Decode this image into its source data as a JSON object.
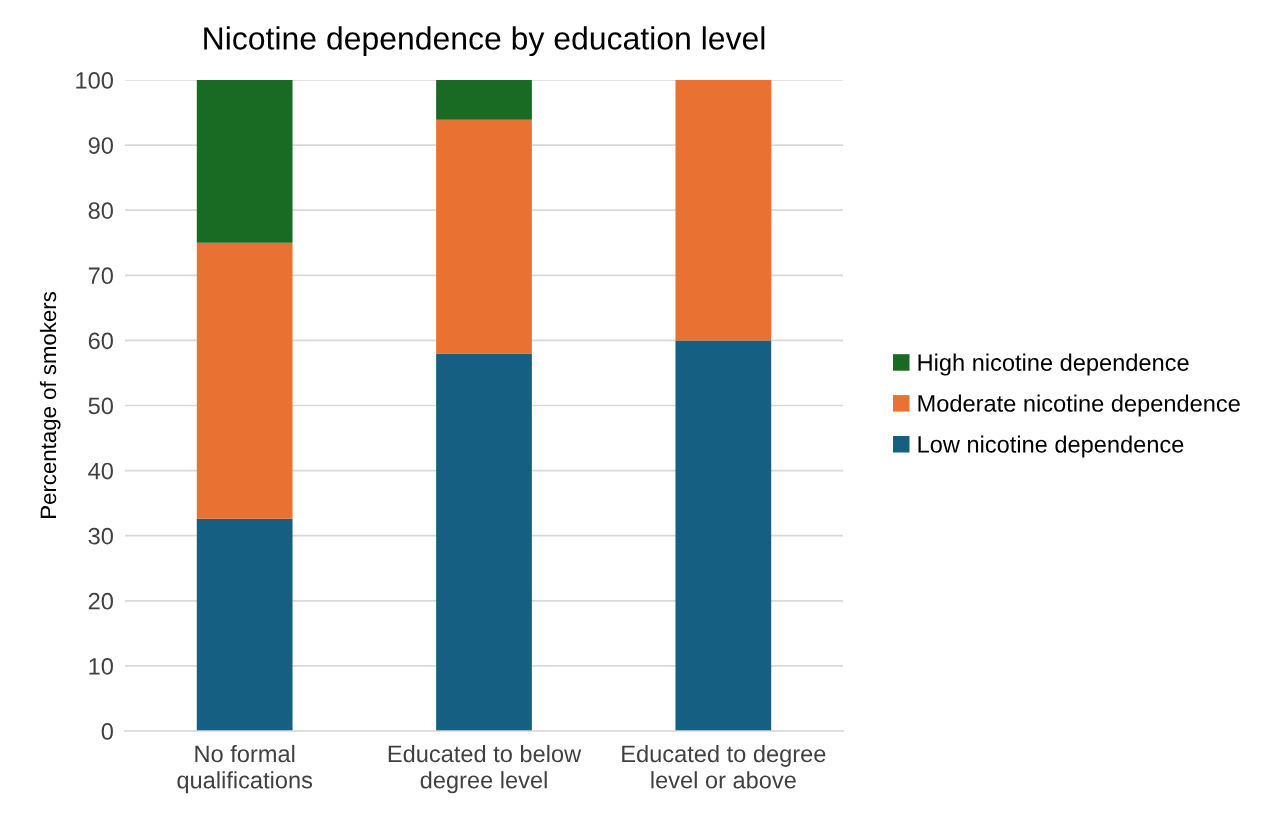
{
  "chart_data": {
    "type": "bar",
    "stacked": true,
    "title": "Nicotine dependence by education level",
    "ylabel": "Percentage of smokers",
    "categories": [
      "No formal\nqualifications",
      "Educated to below\ndegree level",
      "Educated to degree\nlevel or above"
    ],
    "series": [
      {
        "name": "Low nicotine dependence",
        "color": "#156082",
        "values": [
          32.6,
          58.0,
          60.0
        ]
      },
      {
        "name": "Moderate nicotine dependence",
        "color": "#e97132",
        "values": [
          42.4,
          35.9,
          40.0
        ]
      },
      {
        "name": "High nicotine dependence",
        "color": "#196b24",
        "values": [
          25.0,
          6.1,
          0
        ]
      }
    ],
    "ylim": [
      0,
      100
    ],
    "yticks": [
      0,
      10,
      20,
      30,
      40,
      50,
      60,
      70,
      80,
      90,
      100
    ],
    "grid": "y",
    "legend": "right"
  }
}
